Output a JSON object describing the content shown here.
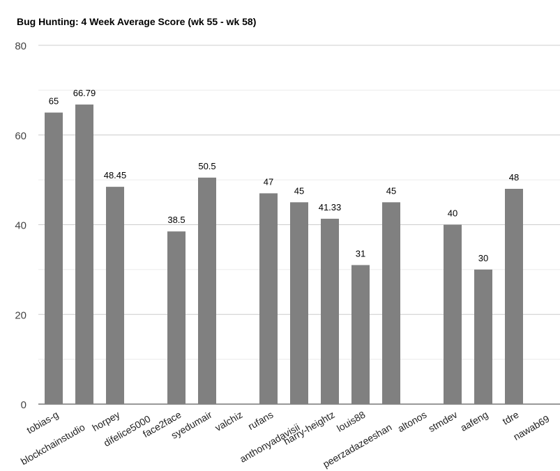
{
  "chart_data": {
    "type": "bar",
    "title": "Bug Hunting: 4 Week Average Score (wk 55 - wk 58)",
    "categories": [
      "tobias-g",
      "blockchainstudio",
      "horpey",
      "difelice5000",
      "face2face",
      "syedumair",
      "valchiz",
      "rufans",
      "anthonyadavisii",
      "harry-heightz",
      "louis88",
      "peerzadazeeshan",
      "altonos",
      "stmdev",
      "aafeng",
      "tdre",
      "nawab69"
    ],
    "values": [
      65,
      66.79,
      48.45,
      0,
      38.5,
      50.5,
      0,
      47,
      45,
      41.33,
      31,
      45,
      0,
      40,
      30,
      48,
      0
    ],
    "data_labels": [
      "65",
      "66.79",
      "48.45",
      "",
      "38.5",
      "50.5",
      "",
      "47",
      "45",
      "41.33",
      "31",
      "45",
      "",
      "40",
      "30",
      "48",
      ""
    ],
    "ylim": [
      0,
      80
    ],
    "yticks": [
      "0",
      "20",
      "40",
      "60",
      "80"
    ],
    "grid": true,
    "bar_color": "#808080",
    "xlabel": "",
    "ylabel": ""
  }
}
